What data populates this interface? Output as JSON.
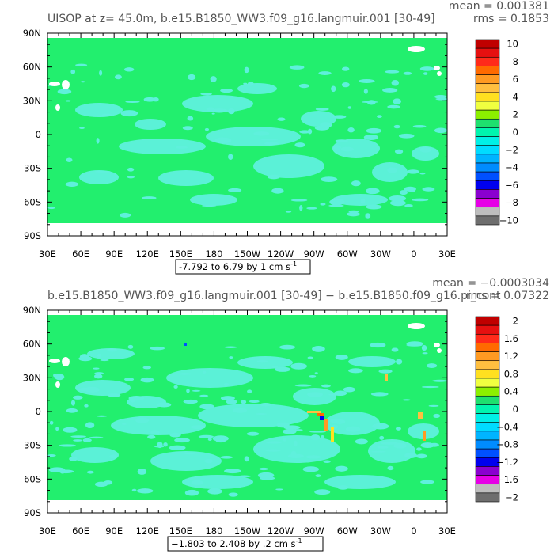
{
  "chart_data": [
    {
      "type": "heatmap",
      "title": "UISOP at z=   45.0m, b.e15.B1850_WW3.f09_g16.langmuir.001 [30-49]",
      "stats": {
        "mean": "mean = 0.001381",
        "rms": "rms = 0.1853"
      },
      "range_label": "-7.792 to 6.79 by 1 cm s",
      "range_unit_exp": "-1",
      "y_ticks": [
        "90N",
        "60N",
        "30N",
        "0",
        "30S",
        "60S",
        "90S"
      ],
      "x_ticks": [
        "30E",
        "60E",
        "90E",
        "120E",
        "150E",
        "180",
        "150W",
        "120W",
        "90W",
        "60W",
        "30W",
        "0",
        "30E"
      ],
      "colorbar": {
        "labels": [
          "10",
          "8",
          "6",
          "4",
          "2",
          "0",
          "−2",
          "−4",
          "−6",
          "−8",
          "−10"
        ],
        "colors": [
          "#c00000",
          "#e61010",
          "#ff2a1a",
          "#ff6a00",
          "#ff9a22",
          "#ffbf40",
          "#ffe020",
          "#f0ff40",
          "#8cf000",
          "#1ee06e",
          "#00f5ae",
          "#00f0e6",
          "#00dcff",
          "#00b4ff",
          "#008cff",
          "#0050ff",
          "#0000ee",
          "#8a00d0",
          "#e600e6",
          "#bebebe",
          "#6e6e6e"
        ]
      },
      "field_mode": "top"
    },
    {
      "type": "heatmap",
      "title": "b.e15.B1850_WW3.f09_g16.langmuir.001 [30-49] − b.e15.B1850.f09_g16.pi_cont",
      "stats": {
        "mean": "mean = −0.0003034",
        "rms": "rms = 0.07322"
      },
      "range_label": "−1.803 to 2.408 by .2 cm s",
      "range_unit_exp": "-1",
      "y_ticks": [
        "90N",
        "60N",
        "30N",
        "0",
        "30S",
        "60S",
        "90S"
      ],
      "x_ticks": [
        "30E",
        "60E",
        "90E",
        "120E",
        "150E",
        "180",
        "150W",
        "120W",
        "90W",
        "60W",
        "30W",
        "0",
        "30E"
      ],
      "colorbar": {
        "labels": [
          "2",
          "1.6",
          "1.2",
          "0.8",
          "0.4",
          "0",
          "−0.4",
          "−0.8",
          "−1.2",
          "−1.6",
          "−2"
        ],
        "colors": [
          "#c00000",
          "#e61010",
          "#ff2a1a",
          "#ff6a00",
          "#ff9a22",
          "#ffbf40",
          "#ffe020",
          "#f0ff40",
          "#8cf000",
          "#1ee06e",
          "#00f5ae",
          "#00f0e6",
          "#00dcff",
          "#00b4ff",
          "#008cff",
          "#0050ff",
          "#0000ee",
          "#8a00d0",
          "#e600e6",
          "#bebebe",
          "#6e6e6e"
        ]
      },
      "field_mode": "bottom"
    }
  ],
  "colors": {
    "ocean_main": "#22ef6e",
    "ocean_alt": "#5ff0dc",
    "land": "#ffffff",
    "frame": "#000000"
  }
}
